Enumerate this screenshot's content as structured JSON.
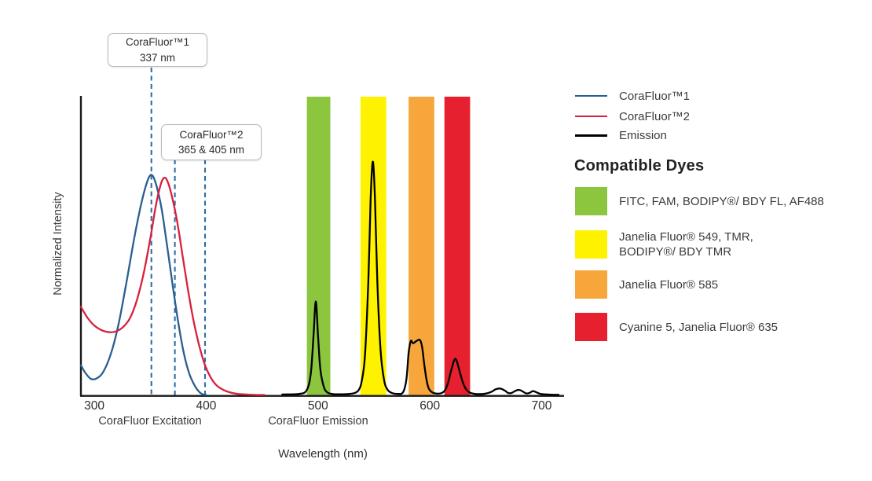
{
  "page": {
    "background": "#ffffff"
  },
  "chart_data": {
    "type": "line",
    "title": "",
    "xlabel": "Wavelength (nm)",
    "ylabel": "Normalized Intensity",
    "x_ticks": [
      300,
      400,
      500,
      600,
      700
    ],
    "xlim": [
      288,
      720
    ],
    "ylim": [
      0,
      1.355
    ],
    "grid": false,
    "axis_captions": [
      {
        "label": "CoraFluor Excitation"
      },
      {
        "label": "CoraFluor Emission"
      }
    ],
    "marker_color": "#2E6DA4",
    "annotations": [
      {
        "title": "CoraFluor™1",
        "subtitle": "337 nm",
        "marker_nm": [
          351
        ]
      },
      {
        "title": "CoraFluor™2",
        "subtitle": "365 & 405 nm",
        "marker_nm": [
          372,
          399
        ]
      }
    ],
    "bands": [
      {
        "name": "FITC-AF488-filter",
        "color": "#8CC63F",
        "from_nm": 490,
        "to_nm": 511
      },
      {
        "name": "JF549-TMR-filter",
        "color": "#FFF200",
        "from_nm": 538,
        "to_nm": 561
      },
      {
        "name": "JF585-filter",
        "color": "#F7A63C",
        "from_nm": 581,
        "to_nm": 604
      },
      {
        "name": "Cy5-JF635-filter",
        "color": "#E6202E",
        "from_nm": 613,
        "to_nm": 636
      }
    ],
    "series": [
      {
        "name": "CoraFluor™1",
        "color": "#2A5E92",
        "width": 2.3,
        "points": [
          [
            288,
            0.135
          ],
          [
            292,
            0.1
          ],
          [
            297,
            0.073
          ],
          [
            302,
            0.075
          ],
          [
            308,
            0.105
          ],
          [
            315,
            0.19
          ],
          [
            322,
            0.33
          ],
          [
            329,
            0.52
          ],
          [
            336,
            0.72
          ],
          [
            342,
            0.87
          ],
          [
            347,
            0.965
          ],
          [
            351,
            1.0
          ],
          [
            355,
            0.96
          ],
          [
            360,
            0.85
          ],
          [
            365,
            0.68
          ],
          [
            370,
            0.5
          ],
          [
            375,
            0.33
          ],
          [
            380,
            0.19
          ],
          [
            385,
            0.095
          ],
          [
            390,
            0.04
          ],
          [
            394,
            0.013
          ],
          [
            397,
            0.003
          ],
          [
            400,
            0.0
          ]
        ]
      },
      {
        "name": "CoraFluor™2",
        "color": "#D7213E",
        "width": 2.3,
        "points": [
          [
            288,
            0.4
          ],
          [
            294,
            0.35
          ],
          [
            300,
            0.315
          ],
          [
            307,
            0.293
          ],
          [
            314,
            0.285
          ],
          [
            320,
            0.29
          ],
          [
            326,
            0.31
          ],
          [
            332,
            0.35
          ],
          [
            338,
            0.43
          ],
          [
            344,
            0.55
          ],
          [
            350,
            0.71
          ],
          [
            355,
            0.86
          ],
          [
            359,
            0.95
          ],
          [
            362,
            0.985
          ],
          [
            365,
            0.975
          ],
          [
            369,
            0.91
          ],
          [
            374,
            0.79
          ],
          [
            379,
            0.63
          ],
          [
            384,
            0.47
          ],
          [
            389,
            0.33
          ],
          [
            394,
            0.22
          ],
          [
            399,
            0.135
          ],
          [
            404,
            0.08
          ],
          [
            409,
            0.045
          ],
          [
            415,
            0.024
          ],
          [
            421,
            0.012
          ],
          [
            428,
            0.005
          ],
          [
            436,
            0.002
          ],
          [
            445,
            0.0
          ],
          [
            452,
            0.0
          ]
        ]
      },
      {
        "name": "Emission",
        "color": "#000000",
        "width": 2.3,
        "points": [
          [
            468,
            0.002
          ],
          [
            478,
            0.003
          ],
          [
            485,
            0.006
          ],
          [
            489,
            0.015
          ],
          [
            492,
            0.05
          ],
          [
            494,
            0.12
          ],
          [
            496,
            0.27
          ],
          [
            498,
            0.425
          ],
          [
            500,
            0.27
          ],
          [
            502,
            0.12
          ],
          [
            505,
            0.04
          ],
          [
            508,
            0.013
          ],
          [
            512,
            0.005
          ],
          [
            518,
            0.003
          ],
          [
            526,
            0.004
          ],
          [
            532,
            0.008
          ],
          [
            536,
            0.02
          ],
          [
            539,
            0.06
          ],
          [
            542,
            0.18
          ],
          [
            545,
            0.52
          ],
          [
            547,
            0.88
          ],
          [
            549,
            1.06
          ],
          [
            551,
            0.88
          ],
          [
            553,
            0.52
          ],
          [
            556,
            0.2
          ],
          [
            559,
            0.07
          ],
          [
            562,
            0.025
          ],
          [
            566,
            0.009
          ],
          [
            571,
            0.005
          ],
          [
            576,
            0.012
          ],
          [
            579,
            0.07
          ],
          [
            581,
            0.19
          ],
          [
            583,
            0.245
          ],
          [
            585,
            0.235
          ],
          [
            588,
            0.245
          ],
          [
            591,
            0.25
          ],
          [
            593,
            0.22
          ],
          [
            595,
            0.14
          ],
          [
            597,
            0.07
          ],
          [
            599,
            0.03
          ],
          [
            602,
            0.012
          ],
          [
            606,
            0.006
          ],
          [
            610,
            0.008
          ],
          [
            613,
            0.018
          ],
          [
            616,
            0.05
          ],
          [
            619,
            0.11
          ],
          [
            622,
            0.16
          ],
          [
            624,
            0.155
          ],
          [
            627,
            0.1
          ],
          [
            630,
            0.05
          ],
          [
            633,
            0.022
          ],
          [
            636,
            0.01
          ],
          [
            640,
            0.005
          ],
          [
            645,
            0.004
          ],
          [
            650,
            0.006
          ],
          [
            655,
            0.014
          ],
          [
            659,
            0.026
          ],
          [
            663,
            0.029
          ],
          [
            667,
            0.02
          ],
          [
            670,
            0.009
          ],
          [
            673,
            0.009
          ],
          [
            677,
            0.02
          ],
          [
            680,
            0.023
          ],
          [
            683,
            0.016
          ],
          [
            686,
            0.007
          ],
          [
            689,
            0.009
          ],
          [
            692,
            0.017
          ],
          [
            695,
            0.013
          ],
          [
            698,
            0.006
          ],
          [
            702,
            0.003
          ],
          [
            708,
            0.001
          ],
          [
            715,
            0.001
          ]
        ]
      }
    ]
  },
  "legend": {
    "items": [
      {
        "label": "CoraFluor™1",
        "color": "#2A5E92"
      },
      {
        "label": "CoraFluor™2",
        "color": "#D7213E"
      },
      {
        "label": "Emission",
        "color": "#000000"
      }
    ]
  },
  "compatible_dyes": {
    "heading": "Compatible Dyes",
    "items": [
      {
        "color": "#8CC63F",
        "label": "FITC, FAM, BODIPY®/ BDY FL, AF488"
      },
      {
        "color": "#FFF200",
        "label": "Janelia Fluor® 549, TMR,\nBODIPY®/ BDY TMR"
      },
      {
        "color": "#F7A63C",
        "label": "Janelia Fluor® 585"
      },
      {
        "color": "#E6202E",
        "label": "Cyanine 5, Janelia Fluor® 635"
      }
    ]
  }
}
